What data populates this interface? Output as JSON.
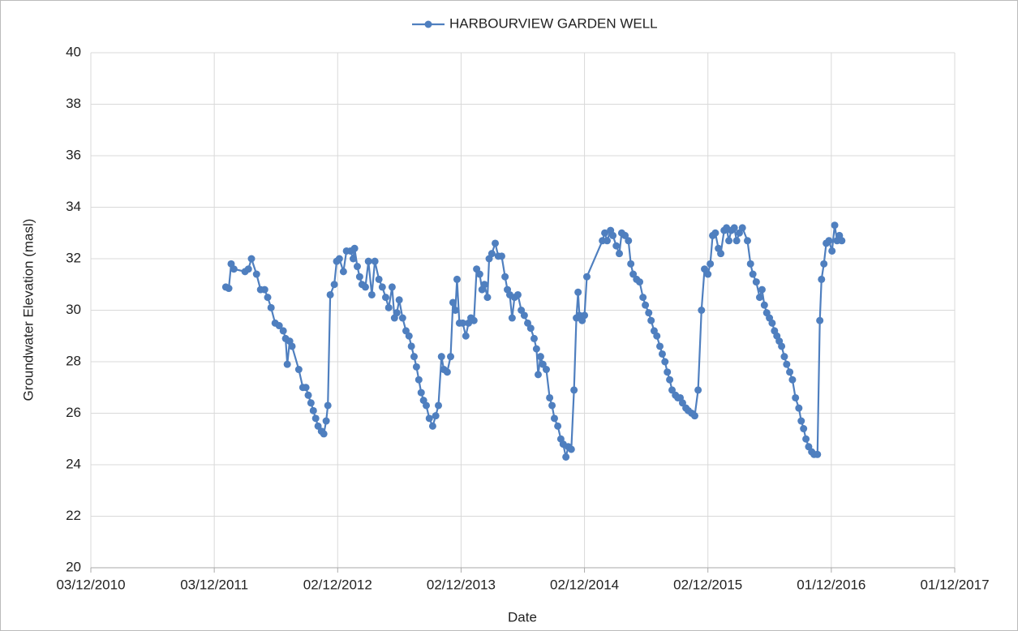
{
  "chart_data": {
    "type": "line",
    "xlabel": "Date",
    "ylabel": "Groundwater Elevation (masl)",
    "xlim": [
      "03/12/2010",
      "01/12/2017"
    ],
    "xticks": [
      "03/12/2010",
      "03/12/2011",
      "02/12/2012",
      "02/12/2013",
      "02/12/2014",
      "02/12/2015",
      "01/12/2016",
      "01/12/2017"
    ],
    "ylim": [
      20,
      40
    ],
    "yticks": [
      20,
      22,
      24,
      26,
      28,
      30,
      32,
      34,
      36,
      38,
      40
    ],
    "grid": true,
    "legend": "top",
    "x": [
      "06/01/2012",
      "15/01/2012",
      "22/01/2012",
      "30/01/2012",
      "03/03/2012",
      "13/03/2012",
      "22/03/2012",
      "06/04/2012",
      "18/04/2012",
      "30/04/2012",
      "09/05/2012",
      "19/05/2012",
      "31/05/2012",
      "12/06/2012",
      "24/06/2012",
      "01/07/2012",
      "06/07/2012",
      "13/07/2012",
      "20/07/2012",
      "09/08/2012",
      "21/08/2012",
      "30/08/2012",
      "06/09/2012",
      "14/09/2012",
      "21/09/2012",
      "28/09/2012",
      "05/10/2012",
      "15/10/2012",
      "22/10/2012",
      "29/10/2012",
      "03/11/2012",
      "10/11/2012",
      "22/11/2012",
      "29/11/2012",
      "07/12/2012",
      "19/12/2012",
      "28/12/2012",
      "09/01/2013",
      "17/01/2013",
      "21/01/2013",
      "29/01/2013",
      "05/02/2013",
      "12/02/2013",
      "22/02/2013",
      "03/03/2013",
      "13/03/2013",
      "22/03/2013",
      "03/04/2013",
      "13/04/2013",
      "23/04/2013",
      "02/05/2013",
      "12/05/2013",
      "19/05/2013",
      "26/05/2013",
      "02/06/2013",
      "12/06/2013",
      "22/06/2013",
      "01/07/2013",
      "08/07/2013",
      "16/07/2013",
      "23/07/2013",
      "30/07/2013",
      "06/08/2013",
      "13/08/2013",
      "21/08/2013",
      "30/08/2013",
      "09/09/2013",
      "18/09/2013",
      "26/09/2013",
      "05/10/2013",
      "12/10/2013",
      "22/10/2013",
      "01/11/2013",
      "08/11/2013",
      "15/11/2013",
      "20/11/2013",
      "27/11/2013",
      "07/12/2013",
      "16/12/2013",
      "24/12/2013",
      "31/12/2013",
      "09/01/2014",
      "17/01/2014",
      "26/01/2014",
      "02/02/2014",
      "09/02/2014",
      "18/02/2014",
      "23/02/2014",
      "03/03/2014",
      "13/03/2014",
      "22/03/2014",
      "01/04/2014",
      "11/04/2014",
      "18/04/2014",
      "25/04/2014",
      "02/05/2014",
      "09/05/2014",
      "19/05/2014",
      "29/05/2014",
      "07/06/2014",
      "17/06/2014",
      "26/06/2014",
      "06/07/2014",
      "13/07/2014",
      "18/07/2014",
      "25/07/2014",
      "01/08/2014",
      "11/08/2014",
      "21/08/2014",
      "28/08/2014",
      "04/09/2014",
      "14/09/2014",
      "23/09/2014",
      "30/09/2014",
      "08/10/2014",
      "15/10/2014",
      "24/10/2014",
      "01/11/2014",
      "08/11/2014",
      "13/11/2014",
      "17/11/2014",
      "25/11/2014",
      "02/12/2014",
      "09/12/2014",
      "24/01/2015",
      "31/01/2015",
      "07/02/2015",
      "17/02/2015",
      "24/02/2015",
      "06/03/2015",
      "15/03/2015",
      "22/03/2015",
      "01/04/2015",
      "11/04/2015",
      "18/04/2015",
      "25/04/2015",
      "05/05/2015",
      "14/05/2015",
      "24/05/2015",
      "31/05/2015",
      "10/06/2015",
      "17/06/2015",
      "26/06/2015",
      "04/07/2015",
      "13/07/2015",
      "20/07/2015",
      "28/07/2015",
      "04/08/2015",
      "11/08/2015",
      "18/08/2015",
      "28/08/2015",
      "04/09/2015",
      "11/09/2015",
      "18/09/2015",
      "28/09/2015",
      "05/10/2015",
      "15/10/2015",
      "24/10/2015",
      "03/11/2015",
      "13/11/2015",
      "22/11/2015",
      "02/12/2015",
      "09/12/2015",
      "16/12/2015",
      "24/12/2015",
      "02/01/2016",
      "09/01/2016",
      "19/01/2016",
      "26/01/2016",
      "02/02/2016",
      "09/02/2016",
      "18/02/2016",
      "25/02/2016",
      "04/03/2016",
      "13/03/2016",
      "28/03/2016",
      "06/04/2016",
      "13/04/2016",
      "23/04/2016",
      "03/05/2016",
      "10/05/2016",
      "17/05/2016",
      "24/05/2016",
      "01/06/2016",
      "09/06/2016",
      "16/06/2016",
      "23/06/2016",
      "30/06/2016",
      "07/07/2016",
      "15/07/2016",
      "22/07/2016",
      "31/07/2016",
      "08/08/2016",
      "17/08/2016",
      "27/08/2016",
      "03/09/2016",
      "10/09/2016",
      "17/09/2016",
      "25/09/2016",
      "04/10/2016",
      "11/10/2016",
      "21/10/2016",
      "28/10/2016",
      "02/11/2016",
      "09/11/2016",
      "16/11/2016",
      "24/11/2016",
      "03/12/2016",
      "11/12/2016",
      "18/12/2016",
      "25/12/2016",
      "01/01/2017"
    ],
    "series": [
      {
        "name": "HARBOURVIEW GARDEN WELL",
        "color": "#4f7fbf",
        "values": [
          30.9,
          30.85,
          31.8,
          31.6,
          31.5,
          31.6,
          32.0,
          31.4,
          30.8,
          30.8,
          30.5,
          30.1,
          29.5,
          29.4,
          29.2,
          28.9,
          27.9,
          28.8,
          28.6,
          27.7,
          27.0,
          27.0,
          26.7,
          26.4,
          26.1,
          25.8,
          25.5,
          25.3,
          25.2,
          25.7,
          26.3,
          30.6,
          31.0,
          31.9,
          32.0,
          31.5,
          32.3,
          32.3,
          32.0,
          32.4,
          31.7,
          31.3,
          31.0,
          30.9,
          31.9,
          30.6,
          31.9,
          31.2,
          30.9,
          30.5,
          30.1,
          30.9,
          29.7,
          29.9,
          30.4,
          29.7,
          29.2,
          29.0,
          28.6,
          28.2,
          27.8,
          27.3,
          26.8,
          26.5,
          26.3,
          25.8,
          25.5,
          25.9,
          26.3,
          28.2,
          27.7,
          27.6,
          28.2,
          30.3,
          30.0,
          31.2,
          29.5,
          29.5,
          29.0,
          29.5,
          29.7,
          29.6,
          31.6,
          31.4,
          30.8,
          31.0,
          30.5,
          32.0,
          32.2,
          32.6,
          32.1,
          32.1,
          31.3,
          30.8,
          30.6,
          29.7,
          30.5,
          30.6,
          30.0,
          29.8,
          29.5,
          29.3,
          28.9,
          28.5,
          27.5,
          28.2,
          27.9,
          27.7,
          26.6,
          26.3,
          25.8,
          25.5,
          25.0,
          24.8,
          24.3,
          24.7,
          24.6,
          26.9,
          29.7,
          30.7,
          29.8,
          29.6,
          29.8,
          31.3,
          32.7,
          33.0,
          32.7,
          33.1,
          32.9,
          32.5,
          32.2,
          33.0,
          32.9,
          32.7,
          31.8,
          31.4,
          31.2,
          31.1,
          30.5,
          30.2,
          29.9,
          29.6,
          29.2,
          29.0,
          28.6,
          28.3,
          28.0,
          27.6,
          27.3,
          26.9,
          26.7,
          26.6,
          26.6,
          26.4,
          26.2,
          26.1,
          26.0,
          25.9,
          26.9,
          30.0,
          31.6,
          31.4,
          31.8,
          32.9,
          33.0,
          32.4,
          32.2,
          33.1,
          33.2,
          32.7,
          33.1,
          33.2,
          32.7,
          33.0,
          33.2,
          32.7,
          31.8,
          31.4,
          31.1,
          30.5,
          30.8,
          30.2,
          29.9,
          29.7,
          29.5,
          29.2,
          29.0,
          28.8,
          28.6,
          28.2,
          27.9,
          27.6,
          27.3,
          26.6,
          26.2,
          25.7,
          25.4,
          25.0,
          24.7,
          24.5,
          24.4,
          24.4,
          29.6,
          31.2,
          31.8,
          32.6,
          32.7,
          32.3,
          33.3,
          32.7,
          32.9,
          32.7
        ]
      }
    ]
  }
}
